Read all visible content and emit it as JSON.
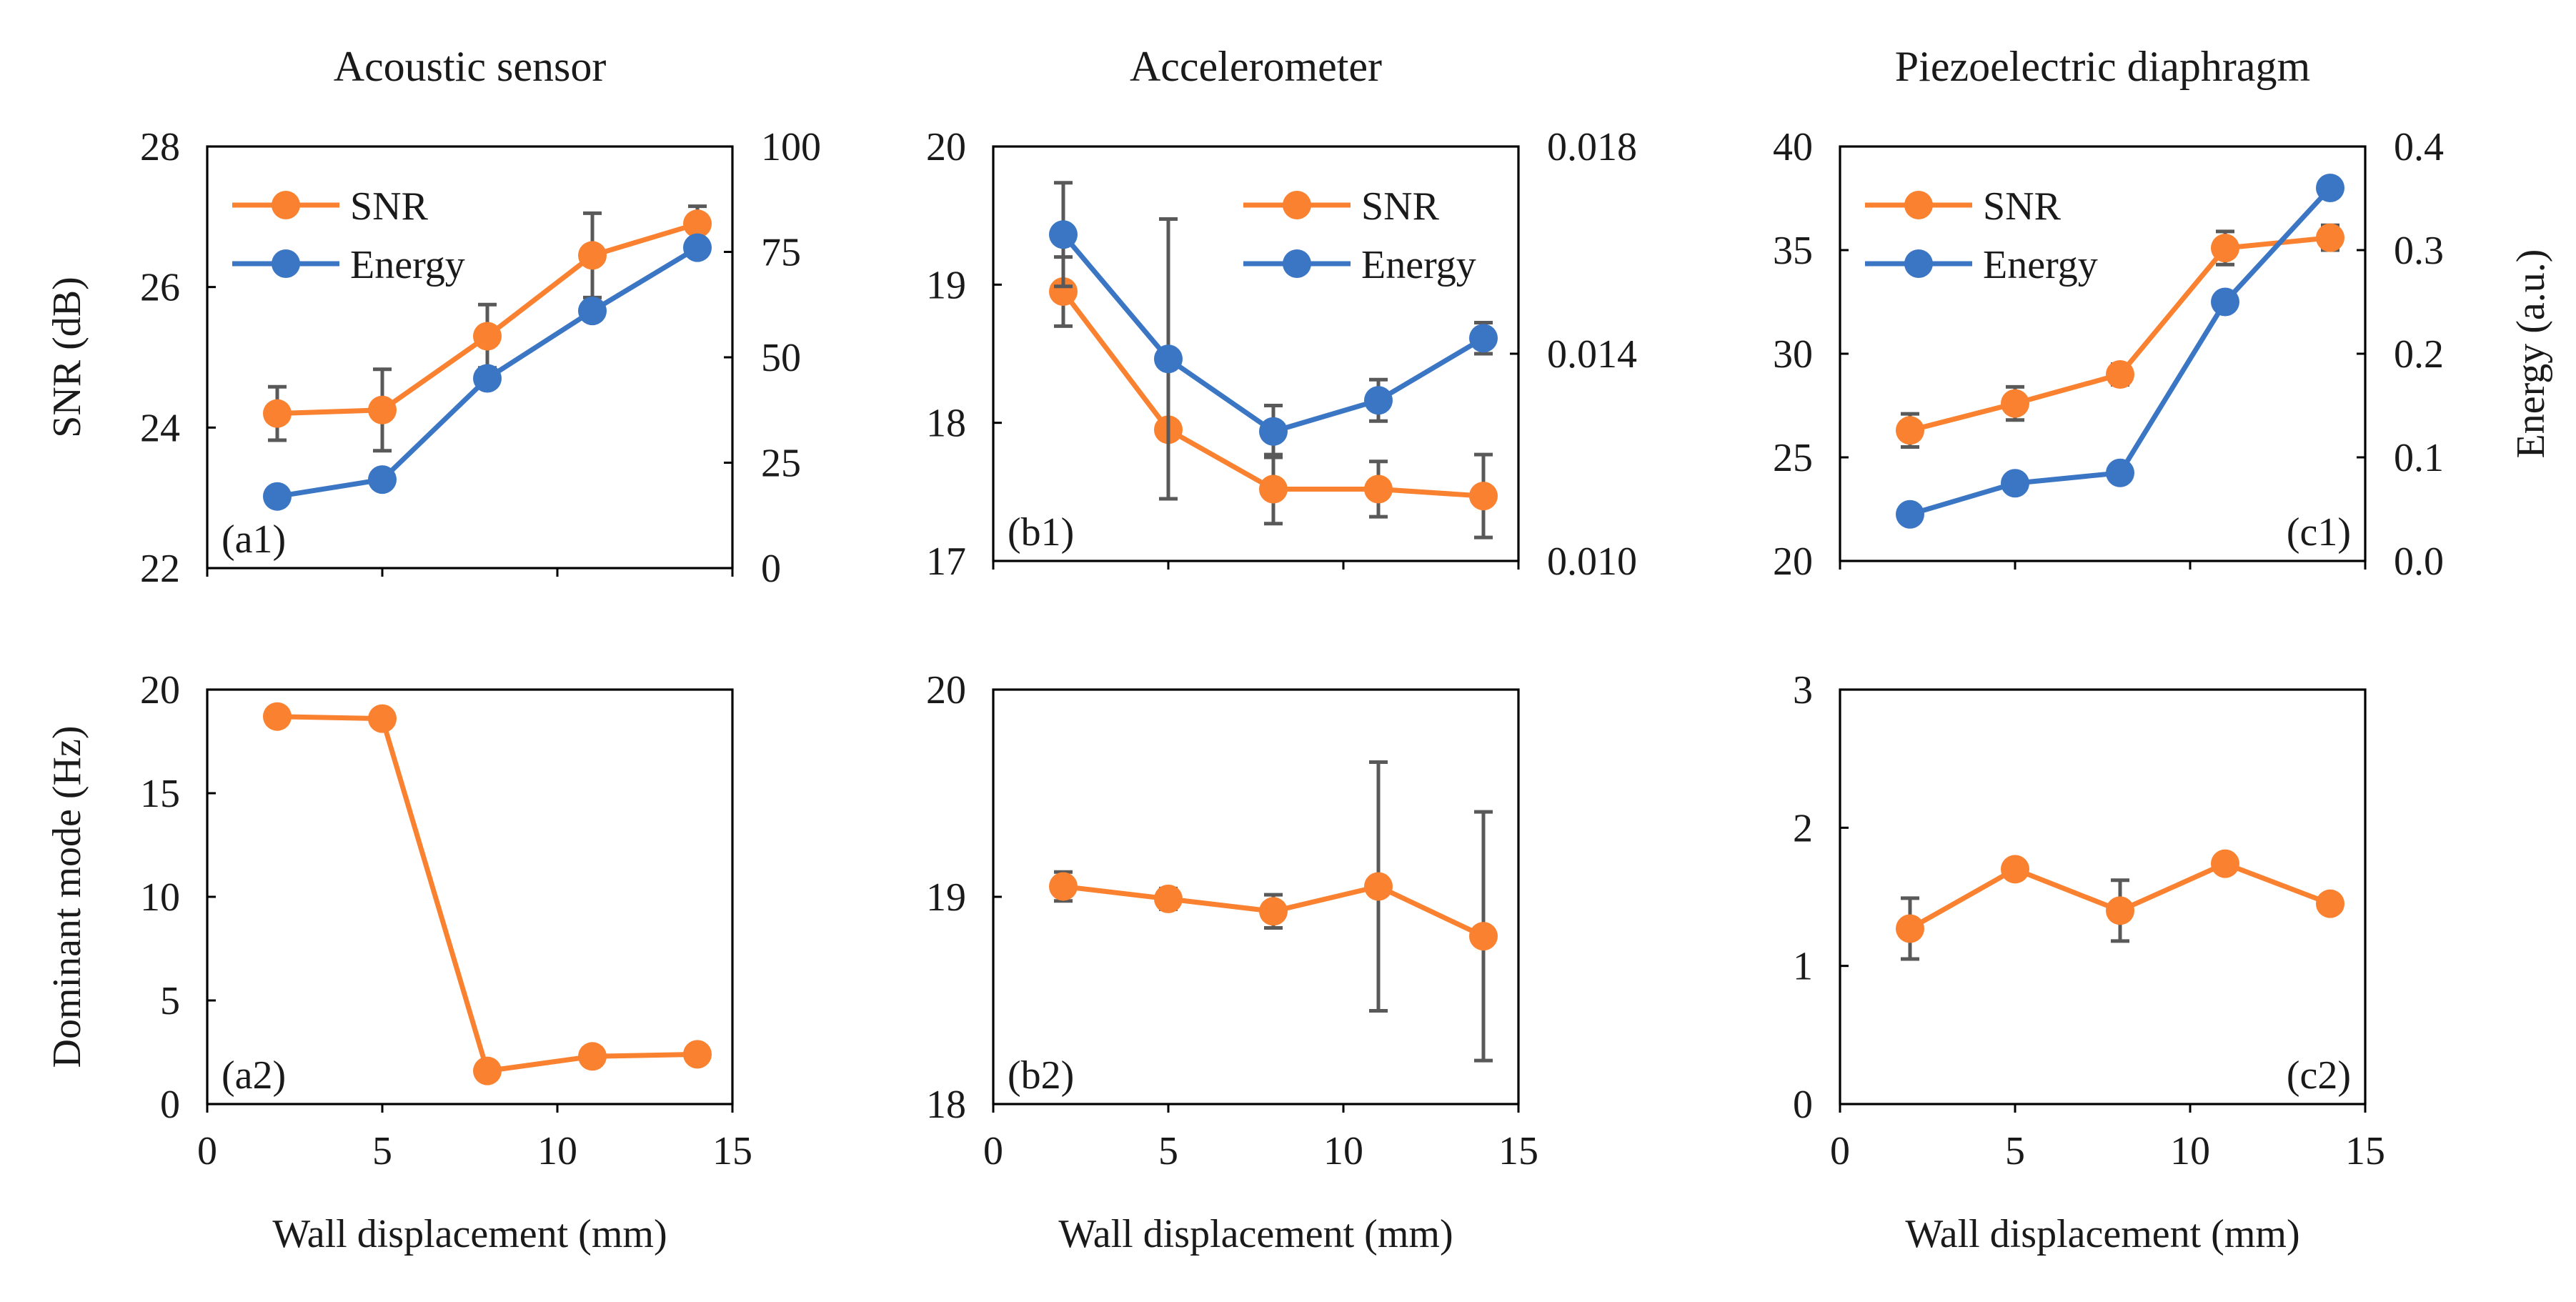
{
  "colors": {
    "snr": "#F98130",
    "energy": "#3B76C4",
    "error_bar": "#595959"
  },
  "chart_data": [
    {
      "id": "a1",
      "type": "line",
      "panel_label": "(a1)",
      "title": "Acoustic sensor",
      "xlabel": "",
      "ylabel": "SNR (dB)",
      "y2label": "",
      "xlim": [
        0,
        15
      ],
      "xticks": [
        0,
        5,
        10,
        15
      ],
      "show_xticklabels": false,
      "ylim": [
        22,
        28
      ],
      "yticks": [
        22,
        24,
        26,
        28
      ],
      "y2lim": [
        0,
        100
      ],
      "y2ticks": [
        0,
        25,
        50,
        75,
        100
      ],
      "legend": "top-left",
      "series": [
        {
          "name": "SNR",
          "axis": "left",
          "color": "#F98130",
          "x": [
            2,
            5,
            8,
            11,
            14
          ],
          "y": [
            24.2,
            24.25,
            25.3,
            26.45,
            26.9
          ],
          "err": [
            0.38,
            0.58,
            0.45,
            0.6,
            0.25
          ]
        },
        {
          "name": "Energy",
          "axis": "right",
          "color": "#3B76C4",
          "x": [
            2,
            5,
            8,
            11,
            14
          ],
          "y": [
            17,
            21,
            45,
            61,
            76
          ],
          "err": [
            0,
            0,
            0,
            0,
            0
          ]
        }
      ]
    },
    {
      "id": "b1",
      "type": "line",
      "panel_label": "(b1)",
      "title": "Accelerometer",
      "xlabel": "",
      "ylabel": "",
      "y2label": "",
      "xlim": [
        0,
        15
      ],
      "xticks": [
        0,
        5,
        10,
        15
      ],
      "show_xticklabels": false,
      "ylim": [
        17,
        20
      ],
      "yticks": [
        17,
        18,
        19,
        20
      ],
      "y2lim": [
        0.01,
        0.018
      ],
      "y2ticks": [
        0.01,
        0.014,
        0.018
      ],
      "y2_decimals": 3,
      "legend": "top-right",
      "series": [
        {
          "name": "SNR",
          "axis": "left",
          "color": "#F98130",
          "x": [
            2,
            5,
            8,
            11,
            14
          ],
          "y": [
            18.95,
            17.95,
            17.52,
            17.52,
            17.47
          ],
          "err": [
            0.25,
            0.5,
            0.25,
            0.2,
            0.3
          ]
        },
        {
          "name": "Energy",
          "axis": "right",
          "color": "#3B76C4",
          "x": [
            2,
            5,
            8,
            11,
            14
          ],
          "y": [
            0.0163,
            0.0139,
            0.0125,
            0.0131,
            0.0143
          ],
          "err": [
            0.001,
            0.0027,
            0.0005,
            0.0004,
            0.0003
          ]
        }
      ]
    },
    {
      "id": "c1",
      "type": "line",
      "panel_label": "(c1)",
      "title": "Piezoelectric diaphragm",
      "xlabel": "",
      "ylabel": "",
      "y2label": "Energy (a.u.)",
      "xlim": [
        0,
        15
      ],
      "xticks": [
        0,
        5,
        10,
        15
      ],
      "show_xticklabels": false,
      "ylim": [
        20,
        40
      ],
      "yticks": [
        20,
        25,
        30,
        35,
        40
      ],
      "y2lim": [
        0,
        0.4
      ],
      "y2ticks": [
        0.0,
        0.1,
        0.2,
        0.3,
        0.4
      ],
      "y2_decimals": 1,
      "legend": "top-left",
      "series": [
        {
          "name": "SNR",
          "axis": "left",
          "color": "#F98130",
          "x": [
            2,
            5,
            8,
            11,
            14
          ],
          "y": [
            26.3,
            27.6,
            29.0,
            35.1,
            35.6
          ],
          "err": [
            0.8,
            0.8,
            0.5,
            0.8,
            0.6
          ]
        },
        {
          "name": "Energy",
          "axis": "right",
          "color": "#3B76C4",
          "x": [
            2,
            5,
            8,
            11,
            14
          ],
          "y": [
            0.045,
            0.075,
            0.085,
            0.25,
            0.36
          ],
          "err": [
            0,
            0,
            0.008,
            0,
            0.008
          ]
        }
      ]
    },
    {
      "id": "a2",
      "type": "line",
      "panel_label": "(a2)",
      "title": "",
      "xlabel": "Wall displacement (mm)",
      "ylabel": "Dominant mode (Hz)",
      "xlim": [
        0,
        15
      ],
      "xticks": [
        0,
        5,
        10,
        15
      ],
      "show_xticklabels": true,
      "ylim": [
        0,
        20
      ],
      "yticks": [
        0,
        5,
        10,
        15,
        20
      ],
      "series": [
        {
          "name": "Dominant mode",
          "axis": "left",
          "color": "#F98130",
          "x": [
            2,
            5,
            8,
            11,
            14
          ],
          "y": [
            18.7,
            18.6,
            1.6,
            2.3,
            2.4
          ],
          "err": [
            0,
            0,
            0,
            0,
            0
          ]
        }
      ]
    },
    {
      "id": "b2",
      "type": "line",
      "panel_label": "(b2)",
      "title": "",
      "xlabel": "Wall displacement (mm)",
      "ylabel": "",
      "xlim": [
        0,
        15
      ],
      "xticks": [
        0,
        5,
        10,
        15
      ],
      "show_xticklabels": true,
      "ylim": [
        18,
        20
      ],
      "yticks": [
        18,
        19,
        20
      ],
      "series": [
        {
          "name": "Dominant mode",
          "axis": "left",
          "color": "#F98130",
          "x": [
            2,
            5,
            8,
            11,
            14
          ],
          "y": [
            19.05,
            18.99,
            18.93,
            19.05,
            18.81
          ],
          "err": [
            0.07,
            0.05,
            0.08,
            0.6,
            0.6
          ]
        }
      ]
    },
    {
      "id": "c2",
      "type": "line",
      "panel_label": "(c2)",
      "title": "",
      "xlabel": "Wall displacement (mm)",
      "ylabel": "",
      "xlim": [
        0,
        15
      ],
      "xticks": [
        0,
        5,
        10,
        15
      ],
      "show_xticklabels": true,
      "ylim": [
        0,
        3
      ],
      "yticks": [
        0,
        1,
        2,
        3
      ],
      "series": [
        {
          "name": "Dominant mode",
          "axis": "left",
          "color": "#F98130",
          "x": [
            2,
            5,
            8,
            11,
            14
          ],
          "y": [
            1.27,
            1.7,
            1.4,
            1.74,
            1.45
          ],
          "err": [
            0.22,
            0,
            0.22,
            0,
            0
          ]
        }
      ]
    }
  ]
}
